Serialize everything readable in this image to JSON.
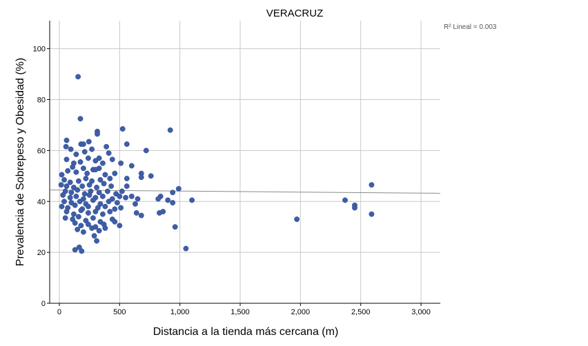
{
  "chart_data": {
    "type": "scatter",
    "title": "VERACRUZ",
    "xlabel": "Distancia a la tienda más cercana (m)",
    "ylabel": "Prevalencia de Sobrepeso y Obesidad (%)",
    "xlim": [
      -80,
      3160
    ],
    "ylim": [
      0,
      111
    ],
    "xticks": [
      0,
      500,
      1000,
      1500,
      2000,
      2500,
      3000
    ],
    "xtick_labels": [
      "0",
      "500",
      "1,000",
      "1,500",
      "2,000",
      "2,500",
      "3,000"
    ],
    "yticks": [
      0,
      20,
      40,
      60,
      80,
      100
    ],
    "ytick_labels": [
      "0",
      "20",
      "40",
      "60",
      "80",
      "100"
    ],
    "grid": true,
    "annotation": "R² Lineal = 0.003",
    "marker_color": "#3f5ea8",
    "fit_line": {
      "x": [
        -80,
        3160
      ],
      "y": [
        44.5,
        43.2
      ]
    },
    "points": [
      [
        155,
        89
      ],
      [
        175,
        72.5
      ],
      [
        525,
        68.5
      ],
      [
        920,
        68
      ],
      [
        315,
        67.5
      ],
      [
        315,
        66.5
      ],
      [
        60,
        64
      ],
      [
        55,
        61.5
      ],
      [
        180,
        62.5
      ],
      [
        200,
        62.5
      ],
      [
        245,
        63.5
      ],
      [
        390,
        61.5
      ],
      [
        560,
        62.5
      ],
      [
        720,
        60
      ],
      [
        95,
        60.5
      ],
      [
        140,
        58.5
      ],
      [
        210,
        59.5
      ],
      [
        270,
        60.5
      ],
      [
        330,
        57
      ],
      [
        410,
        59
      ],
      [
        60,
        56.5
      ],
      [
        120,
        55
      ],
      [
        175,
        55.5
      ],
      [
        240,
        57
      ],
      [
        300,
        56
      ],
      [
        360,
        55
      ],
      [
        440,
        56.5
      ],
      [
        510,
        55
      ],
      [
        600,
        54
      ],
      [
        110,
        53.5
      ],
      [
        200,
        53
      ],
      [
        280,
        52.5
      ],
      [
        330,
        53
      ],
      [
        20,
        50.5
      ],
      [
        70,
        52
      ],
      [
        140,
        51.5
      ],
      [
        230,
        51
      ],
      [
        300,
        52.5
      ],
      [
        380,
        50.5
      ],
      [
        460,
        51
      ],
      [
        680,
        51
      ],
      [
        760,
        50
      ],
      [
        40,
        48.5
      ],
      [
        90,
        47.5
      ],
      [
        160,
        48
      ],
      [
        220,
        49
      ],
      [
        270,
        48
      ],
      [
        340,
        48.5
      ],
      [
        420,
        49
      ],
      [
        560,
        49
      ],
      [
        680,
        49.5
      ],
      [
        15,
        46.5
      ],
      [
        60,
        46
      ],
      [
        120,
        45.5
      ],
      [
        190,
        46
      ],
      [
        250,
        46.5
      ],
      [
        310,
        45.5
      ],
      [
        370,
        47
      ],
      [
        430,
        46
      ],
      [
        560,
        46
      ],
      [
        990,
        45
      ],
      [
        50,
        44
      ],
      [
        100,
        43.5
      ],
      [
        150,
        44.5
      ],
      [
        210,
        43
      ],
      [
        260,
        44
      ],
      [
        330,
        43.5
      ],
      [
        400,
        44
      ],
      [
        470,
        43
      ],
      [
        520,
        44
      ],
      [
        940,
        43.5
      ],
      [
        30,
        42.5
      ],
      [
        90,
        41.5
      ],
      [
        140,
        42
      ],
      [
        200,
        41
      ],
      [
        250,
        42.5
      ],
      [
        300,
        41.5
      ],
      [
        360,
        42
      ],
      [
        440,
        41
      ],
      [
        500,
        42
      ],
      [
        550,
        41.5
      ],
      [
        600,
        42
      ],
      [
        650,
        41
      ],
      [
        840,
        42
      ],
      [
        1100,
        40.5
      ],
      [
        2370,
        40.5
      ],
      [
        2590,
        46.5
      ],
      [
        40,
        40
      ],
      [
        100,
        39.5
      ],
      [
        170,
        40
      ],
      [
        220,
        39
      ],
      [
        280,
        40.5
      ],
      [
        340,
        39
      ],
      [
        410,
        40
      ],
      [
        480,
        39.5
      ],
      [
        630,
        39
      ],
      [
        820,
        41
      ],
      [
        900,
        40.5
      ],
      [
        940,
        39.5
      ],
      [
        20,
        38
      ],
      [
        70,
        37.5
      ],
      [
        130,
        38.5
      ],
      [
        190,
        37
      ],
      [
        240,
        38
      ],
      [
        320,
        37.5
      ],
      [
        380,
        38
      ],
      [
        460,
        37
      ],
      [
        510,
        37.5
      ],
      [
        2450,
        38.5
      ],
      [
        2450,
        37.5
      ],
      [
        60,
        36
      ],
      [
        120,
        35
      ],
      [
        180,
        36.5
      ],
      [
        240,
        35.5
      ],
      [
        300,
        36
      ],
      [
        360,
        35
      ],
      [
        420,
        36
      ],
      [
        640,
        35.5
      ],
      [
        680,
        34.5
      ],
      [
        830,
        35.5
      ],
      [
        860,
        36
      ],
      [
        2590,
        35
      ],
      [
        50,
        33.5
      ],
      [
        110,
        33
      ],
      [
        160,
        34
      ],
      [
        220,
        32.5
      ],
      [
        280,
        33.5
      ],
      [
        340,
        32
      ],
      [
        440,
        33
      ],
      [
        1970,
        33
      ],
      [
        130,
        31.5
      ],
      [
        180,
        30.5
      ],
      [
        240,
        31
      ],
      [
        300,
        30
      ],
      [
        370,
        31
      ],
      [
        460,
        32
      ],
      [
        500,
        30.5
      ],
      [
        960,
        30
      ],
      [
        150,
        29
      ],
      [
        200,
        28
      ],
      [
        270,
        29.5
      ],
      [
        330,
        28.5
      ],
      [
        380,
        29.5
      ],
      [
        290,
        26.5
      ],
      [
        310,
        24.5
      ],
      [
        165,
        22
      ],
      [
        130,
        21
      ],
      [
        185,
        20.5
      ],
      [
        1050,
        21.5
      ]
    ]
  }
}
